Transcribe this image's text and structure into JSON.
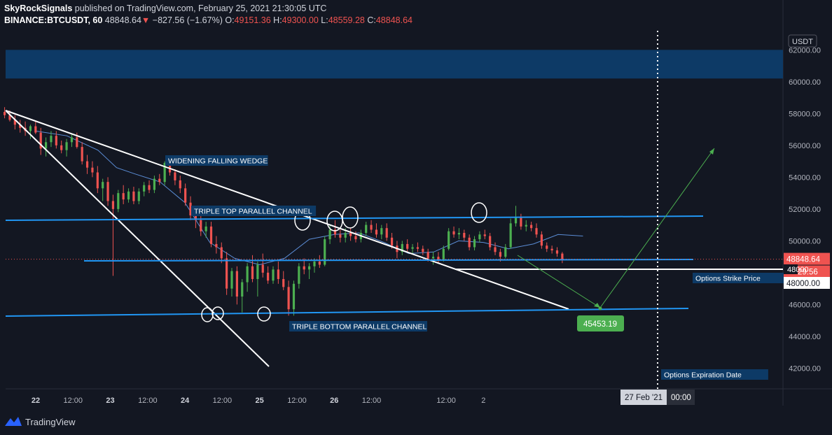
{
  "header": {
    "publisher": "SkyRockSignals",
    "published_text": "published on TradingView.com, February 25, 2021 21:30:05 UTC",
    "symbol": "BINANCE:BTCUSDT, 60",
    "last": "48848.64",
    "arrow": "▼",
    "change": "−827.56 (−1.67%)",
    "o_label": "O:",
    "o": "49151.36",
    "h_label": "H:",
    "h": "49300.00",
    "l_label": "L:",
    "l": "48559.28",
    "c_label": "C:",
    "c": "48848.64"
  },
  "footer": {
    "brand": "TradingView"
  },
  "colors": {
    "background": "#131722",
    "up": "#26a69a",
    "up_fill": "#4caf50",
    "down": "#ef5350",
    "channel": "#2196f3",
    "wedge": "#ffffff",
    "projection": "#4caf50",
    "zone": "#0d3a66"
  },
  "chart_data": {
    "type": "candlestick",
    "currency_badge": "USDT",
    "ylim": [
      40700,
      63200
    ],
    "y_ticks": [
      "62000.00",
      "60000.00",
      "58000.00",
      "56000.00",
      "54000.00",
      "52000.00",
      "50000.00",
      "46000.00",
      "44000.00",
      "42000.00"
    ],
    "x_ticks": [
      "22",
      "12:00",
      "23",
      "12:00",
      "24",
      "12:00",
      "25",
      "12:00",
      "26",
      "12:00",
      "12:00",
      "2"
    ],
    "x_tick_hours": [
      0,
      12,
      24,
      36,
      48,
      60,
      72,
      84,
      96,
      108,
      132,
      144
    ],
    "x_bold_ticks": [
      "22",
      "23",
      "24",
      "25",
      "26"
    ],
    "last_price_label": "48848.64",
    "countdown_label": "29:56",
    "hidden_price_label": "48000",
    "strike_price_label": "48000.00",
    "target_label": "45453.19",
    "target_price": 45453.19,
    "crosshair_date_label": "27 Feb '21",
    "crosshair_time_label": "00:00",
    "zone": {
      "from": 60200,
      "to": 62000
    },
    "annotations": {
      "wedge": "WIDENING FALLING WEDGE",
      "top_channel": "TRIPLE TOP PARALLEL CHANNEL",
      "bottom_channel": "TRIPLE BOTTOM PARALLEL CHANNEL",
      "strike": "Options Strike Price",
      "expiration": "Options Expiration Date"
    },
    "candles": [
      [
        58100,
        58400,
        57700,
        57900
      ],
      [
        57900,
        58200,
        57500,
        57600
      ],
      [
        57600,
        57900,
        57000,
        57300
      ],
      [
        57300,
        57600,
        56800,
        57100
      ],
      [
        57100,
        57500,
        56600,
        56900
      ],
      [
        56900,
        57300,
        56400,
        57200
      ],
      [
        57200,
        57500,
        56700,
        56800
      ],
      [
        56800,
        57100,
        55400,
        55800
      ],
      [
        55800,
        56500,
        55300,
        56200
      ],
      [
        56200,
        56900,
        55900,
        56600
      ],
      [
        56600,
        56900,
        55800,
        56000
      ],
      [
        56000,
        56300,
        55500,
        55700
      ],
      [
        55700,
        56400,
        55300,
        56200
      ],
      [
        56200,
        56700,
        55900,
        56500
      ],
      [
        56500,
        56800,
        55800,
        55900
      ],
      [
        55900,
        56200,
        54800,
        55000
      ],
      [
        55000,
        55400,
        54200,
        54600
      ],
      [
        54600,
        55000,
        54000,
        54300
      ],
      [
        54300,
        54700,
        53000,
        53300
      ],
      [
        53300,
        53900,
        52500,
        53700
      ],
      [
        53700,
        54000,
        52200,
        52500
      ],
      [
        52500,
        52900,
        47800,
        52000
      ],
      [
        52000,
        53200,
        51800,
        53000
      ],
      [
        53000,
        53500,
        52300,
        52600
      ],
      [
        52600,
        53300,
        52400,
        53100
      ],
      [
        53100,
        53400,
        52300,
        52500
      ],
      [
        52500,
        53300,
        52300,
        53100
      ],
      [
        53100,
        53700,
        52800,
        53500
      ],
      [
        53500,
        53800,
        53000,
        53200
      ],
      [
        53200,
        54100,
        53000,
        53900
      ],
      [
        53900,
        54200,
        53500,
        53700
      ],
      [
        53700,
        55000,
        53500,
        54900
      ],
      [
        54900,
        55100,
        54100,
        54300
      ],
      [
        54300,
        54500,
        53500,
        53800
      ],
      [
        53800,
        54100,
        53000,
        53300
      ],
      [
        53300,
        53600,
        52200,
        52400
      ],
      [
        52400,
        52800,
        51300,
        51600
      ],
      [
        51600,
        52100,
        50800,
        51300
      ],
      [
        51300,
        51700,
        50300,
        50600
      ],
      [
        50600,
        51200,
        50200,
        50900
      ],
      [
        50900,
        51200,
        49600,
        49800
      ],
      [
        49800,
        50300,
        49200,
        49600
      ],
      [
        49600,
        49900,
        48600,
        48900
      ],
      [
        48900,
        49300,
        46600,
        47000
      ],
      [
        47000,
        48300,
        46500,
        48100
      ],
      [
        48100,
        48400,
        46000,
        46500
      ],
      [
        46500,
        47600,
        45500,
        47400
      ],
      [
        47400,
        48600,
        46800,
        48400
      ],
      [
        48400,
        49100,
        47400,
        47600
      ],
      [
        47600,
        48700,
        46500,
        48500
      ],
      [
        48500,
        49200,
        47700,
        48000
      ],
      [
        48000,
        48400,
        47300,
        47500
      ],
      [
        47500,
        48400,
        47300,
        48200
      ],
      [
        48200,
        48700,
        47300,
        47600
      ],
      [
        47600,
        48100,
        46900,
        47100
      ],
      [
        47100,
        47500,
        45300,
        45700
      ],
      [
        45700,
        47500,
        45300,
        47300
      ],
      [
        47300,
        48600,
        47000,
        48400
      ],
      [
        48400,
        48900,
        47900,
        48200
      ],
      [
        48200,
        48600,
        47600,
        48400
      ],
      [
        48400,
        48900,
        48000,
        48700
      ],
      [
        48700,
        49100,
        48300,
        48500
      ],
      [
        48500,
        50300,
        48400,
        50100
      ],
      [
        50100,
        51000,
        49800,
        50700
      ],
      [
        50700,
        51300,
        50200,
        50400
      ],
      [
        50400,
        50700,
        49900,
        50200
      ],
      [
        50200,
        50800,
        49900,
        50500
      ],
      [
        50500,
        50800,
        50000,
        50300
      ],
      [
        50300,
        50600,
        49900,
        50100
      ],
      [
        50100,
        50700,
        49900,
        50500
      ],
      [
        50500,
        51200,
        50300,
        51000
      ],
      [
        51000,
        51300,
        50500,
        50700
      ],
      [
        50700,
        51100,
        50200,
        50400
      ],
      [
        50400,
        51000,
        50100,
        50800
      ],
      [
        50800,
        51100,
        50000,
        50200
      ],
      [
        50200,
        50500,
        49500,
        49700
      ],
      [
        49700,
        50000,
        48900,
        49300
      ],
      [
        49300,
        50000,
        49100,
        49800
      ],
      [
        49800,
        50100,
        49300,
        49500
      ],
      [
        49500,
        49800,
        49200,
        49600
      ],
      [
        49600,
        49900,
        49300,
        49500
      ],
      [
        49500,
        49700,
        49100,
        49300
      ],
      [
        49300,
        49500,
        48700,
        48900
      ],
      [
        48900,
        49300,
        48500,
        49000
      ],
      [
        49000,
        49300,
        48600,
        48800
      ],
      [
        48800,
        49700,
        48700,
        49500
      ],
      [
        49500,
        50800,
        49400,
        50600
      ],
      [
        50600,
        50900,
        50200,
        50400
      ],
      [
        50400,
        50800,
        50100,
        50500
      ],
      [
        50500,
        50700,
        50000,
        50200
      ],
      [
        50200,
        50400,
        49400,
        49600
      ],
      [
        49600,
        50300,
        49400,
        50100
      ],
      [
        50100,
        50600,
        49900,
        50400
      ],
      [
        50400,
        50700,
        50100,
        50300
      ],
      [
        50300,
        50500,
        49400,
        49600
      ],
      [
        49600,
        49900,
        49100,
        49300
      ],
      [
        49300,
        49500,
        48700,
        49000
      ],
      [
        49000,
        49800,
        48900,
        49600
      ],
      [
        49600,
        51400,
        49500,
        51100
      ],
      [
        51100,
        52200,
        50900,
        51500
      ],
      [
        51500,
        51700,
        50700,
        50900
      ],
      [
        50900,
        51300,
        50600,
        51000
      ],
      [
        51000,
        51200,
        50600,
        50800
      ],
      [
        50800,
        51100,
        50200,
        50400
      ],
      [
        50400,
        50600,
        49500,
        49700
      ],
      [
        49700,
        49900,
        49300,
        49500
      ],
      [
        49500,
        49700,
        49200,
        49400
      ],
      [
        49400,
        49600,
        49000,
        49200
      ],
      [
        49200,
        49300,
        48600,
        48849
      ]
    ],
    "moving_average": [
      [
        0,
        56900
      ],
      [
        10,
        56600
      ],
      [
        20,
        55700
      ],
      [
        26,
        54600
      ],
      [
        32,
        54200
      ],
      [
        40,
        53700
      ],
      [
        48,
        52400
      ],
      [
        56,
        49900
      ],
      [
        64,
        48900
      ],
      [
        72,
        48500
      ],
      [
        80,
        48900
      ],
      [
        88,
        50100
      ],
      [
        96,
        50400
      ],
      [
        104,
        50500
      ],
      [
        112,
        49900
      ],
      [
        120,
        49200
      ],
      [
        128,
        49300
      ],
      [
        136,
        50000
      ],
      [
        144,
        49900
      ],
      [
        152,
        49500
      ],
      [
        160,
        49800
      ],
      [
        168,
        50400
      ],
      [
        176,
        50300
      ]
    ]
  }
}
